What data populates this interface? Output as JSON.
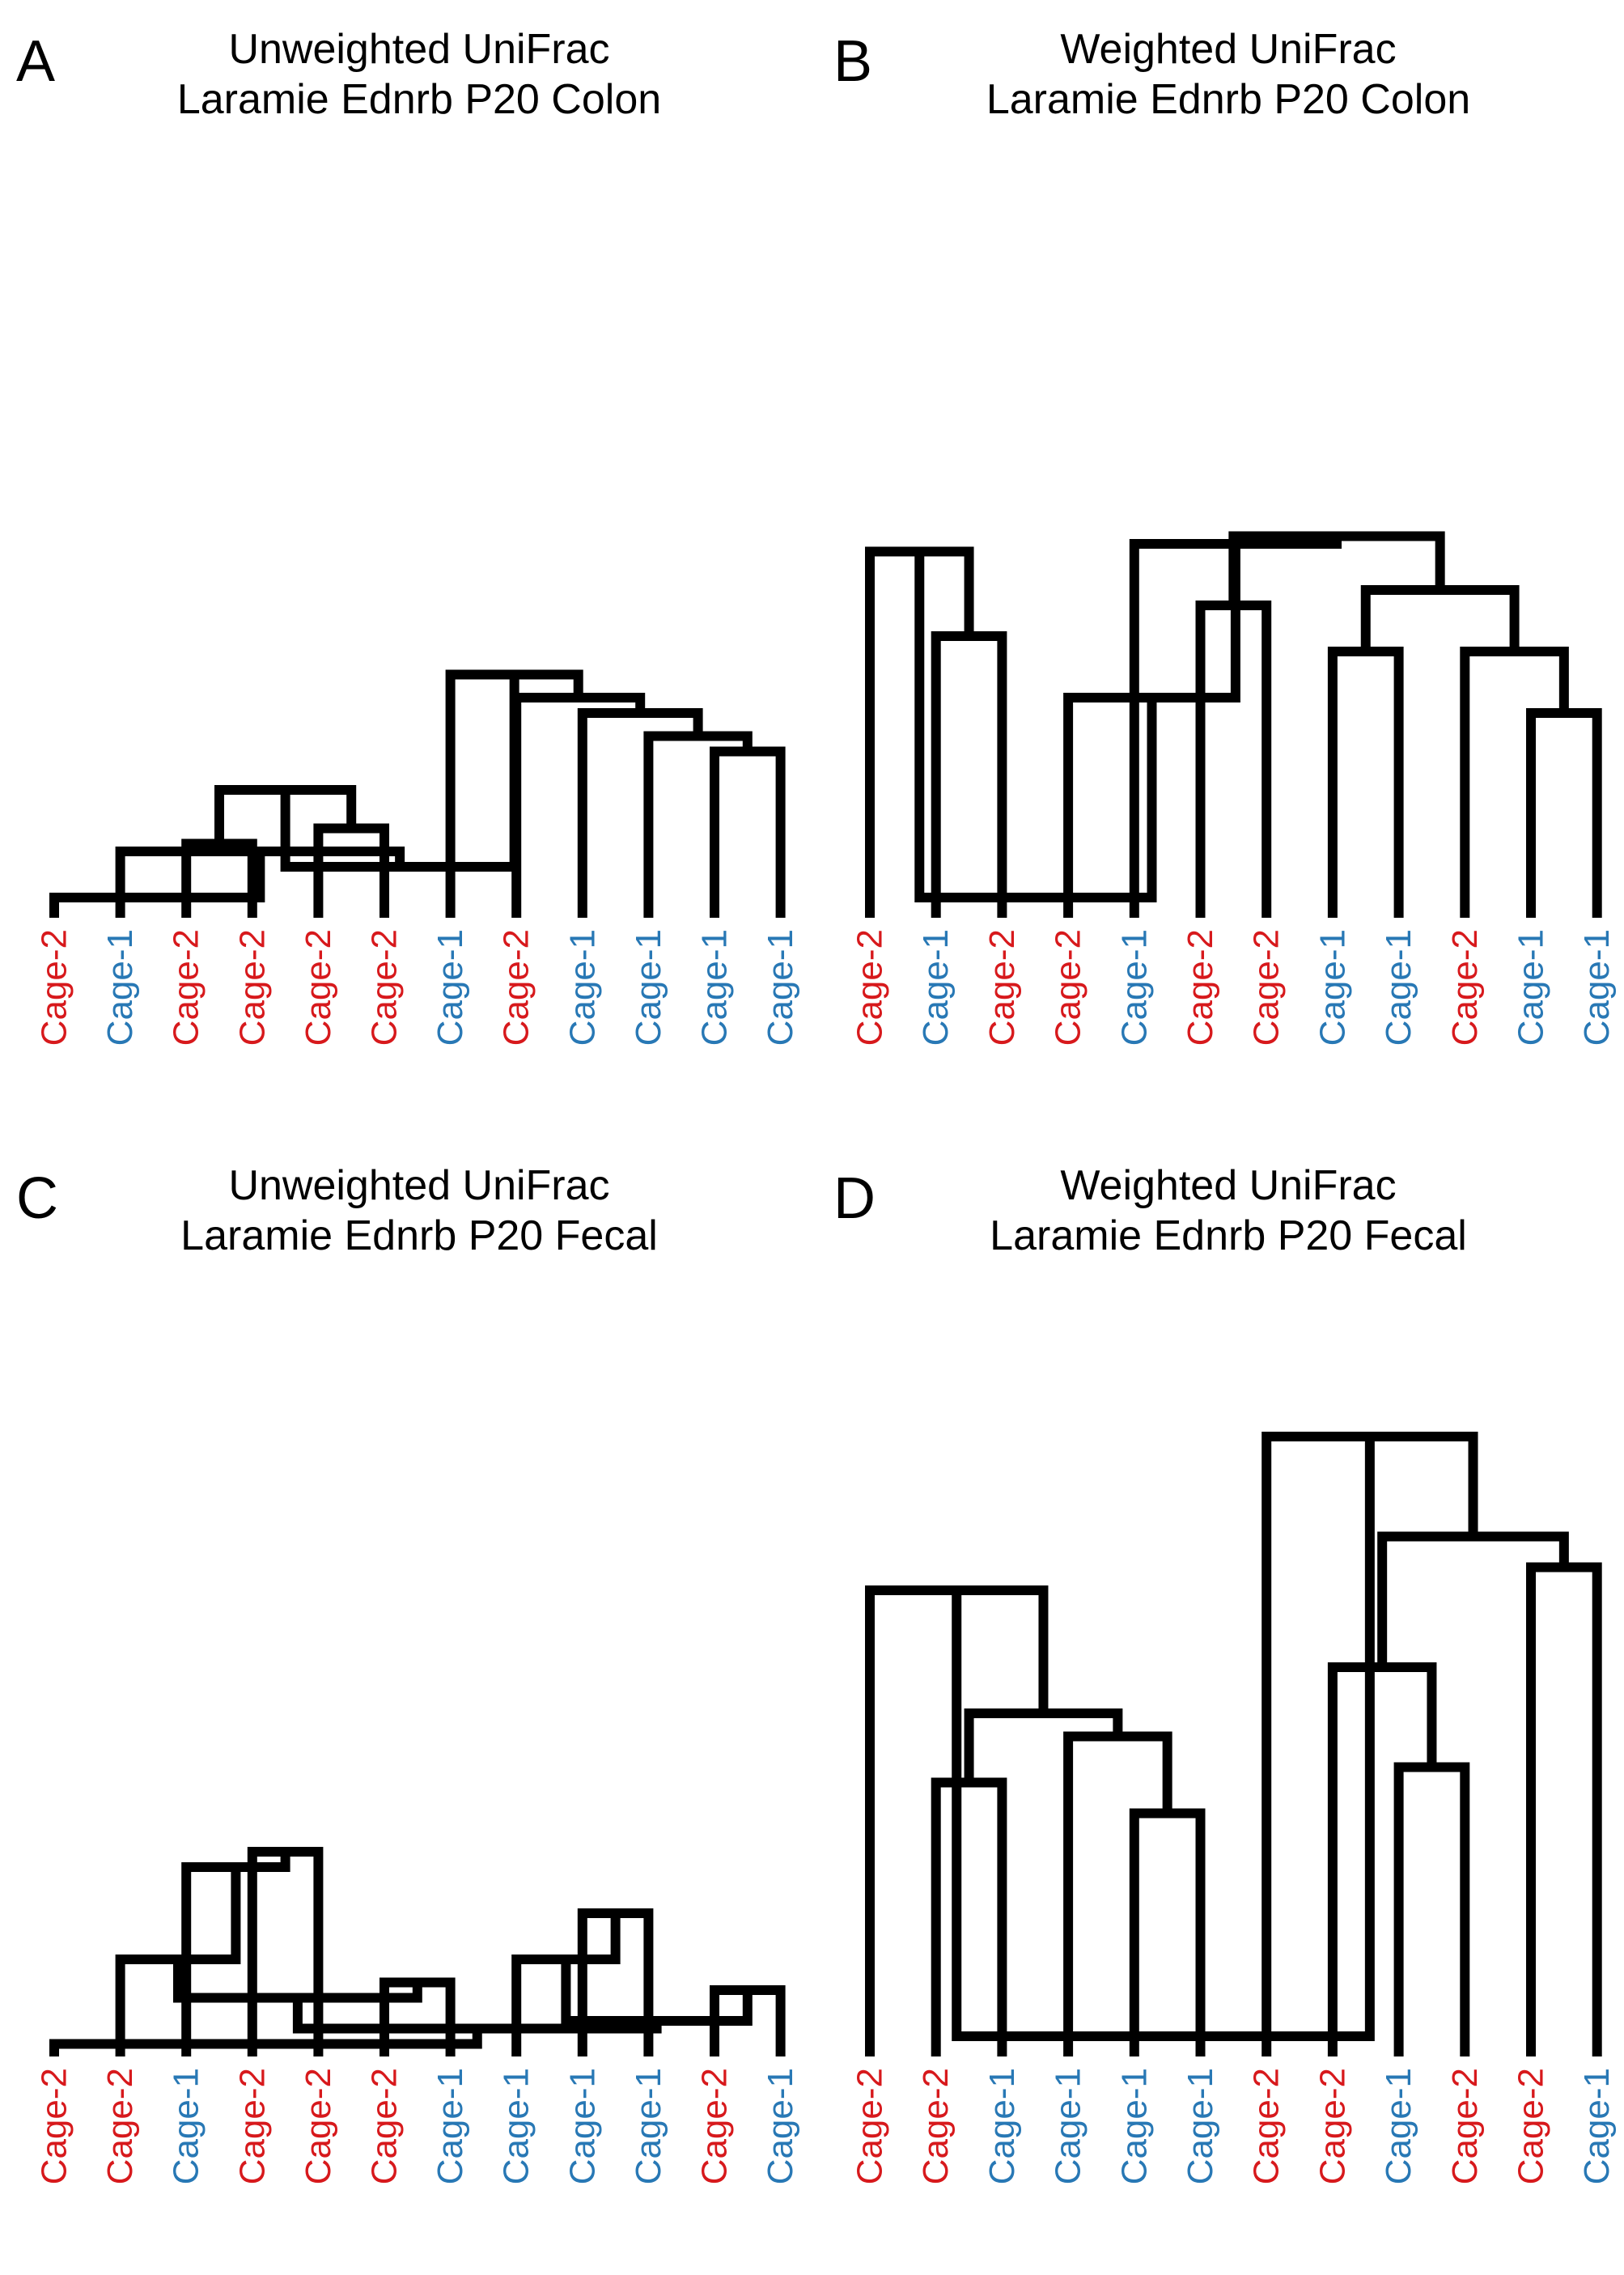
{
  "colors": {
    "Cage-1": "#2878b5",
    "Cage-2": "#d7191c",
    "branch": "#000000"
  },
  "chart_data": [
    {
      "type": "dendrogram",
      "panel": "A",
      "title": [
        "Unweighted UniFrac",
        "Laramie Ednrb P20 Colon"
      ],
      "leaves": [
        "Cage-2",
        "Cage-1",
        "Cage-2",
        "Cage-2",
        "Cage-2",
        "Cage-2",
        "Cage-1",
        "Cage-2",
        "Cage-1",
        "Cage-1",
        "Cage-1",
        "Cage-1"
      ],
      "merges": [
        [
          10,
          11,
          0.21
        ],
        [
          9,
          -1,
          0.23
        ],
        [
          8,
          -2,
          0.26
        ],
        [
          7,
          -3,
          0.28
        ],
        [
          6,
          -4,
          0.31
        ],
        [
          4,
          5,
          0.11
        ],
        [
          2,
          3,
          0.09
        ],
        [
          -7,
          -6,
          0.16
        ],
        [
          -8,
          -5,
          0.06
        ],
        [
          1,
          -9,
          0.08
        ],
        [
          0,
          -10,
          0.02
        ]
      ]
    },
    {
      "type": "dendrogram",
      "panel": "B",
      "title": [
        "Weighted UniFrac",
        "Laramie Ednrb P20 Colon"
      ],
      "leaves": [
        "Cage-2",
        "Cage-1",
        "Cage-2",
        "Cage-2",
        "Cage-1",
        "Cage-2",
        "Cage-2",
        "Cage-1",
        "Cage-1",
        "Cage-2",
        "Cage-1",
        "Cage-1"
      ],
      "merges": [
        [
          1,
          2,
          0.36
        ],
        [
          0,
          -1,
          0.47
        ],
        [
          10,
          11,
          0.26
        ],
        [
          9,
          -3,
          0.34
        ],
        [
          7,
          8,
          0.34
        ],
        [
          -5,
          -4,
          0.42
        ],
        [
          5,
          6,
          0.4
        ],
        [
          -7,
          -6,
          0.49
        ],
        [
          4,
          -8,
          0.48
        ],
        [
          3,
          -9,
          0.28
        ],
        [
          -2,
          -10,
          0.02
        ]
      ]
    },
    {
      "type": "dendrogram",
      "panel": "C",
      "title": [
        "Unweighted UniFrac",
        "Laramie Ednrb P20 Fecal"
      ],
      "leaves": [
        "Cage-2",
        "Cage-2",
        "Cage-1",
        "Cage-2",
        "Cage-2",
        "Cage-2",
        "Cage-1",
        "Cage-1",
        "Cage-1",
        "Cage-1",
        "Cage-2",
        "Cage-1"
      ],
      "merges": [
        [
          3,
          4,
          0.26
        ],
        [
          2,
          -1,
          0.24
        ],
        [
          1,
          -2,
          0.12
        ],
        [
          5,
          6,
          0.09
        ],
        [
          -3,
          -4,
          0.07
        ],
        [
          8,
          9,
          0.18
        ],
        [
          7,
          -6,
          0.12
        ],
        [
          10,
          11,
          0.08
        ],
        [
          -7,
          -8,
          0.04
        ],
        [
          -5,
          -9,
          0.03
        ],
        [
          0,
          -10,
          0.01
        ]
      ]
    },
    {
      "type": "dendrogram",
      "panel": "D",
      "title": [
        "Weighted UniFrac",
        "Laramie Ednrb P20 Fecal"
      ],
      "leaves": [
        "Cage-2",
        "Cage-2",
        "Cage-1",
        "Cage-1",
        "Cage-1",
        "Cage-1",
        "Cage-2",
        "Cage-2",
        "Cage-1",
        "Cage-2",
        "Cage-2",
        "Cage-1"
      ],
      "merges": [
        [
          1,
          2,
          0.35
        ],
        [
          4,
          5,
          0.31
        ],
        [
          3,
          -2,
          0.41
        ],
        [
          -1,
          -3,
          0.44
        ],
        [
          0,
          -4,
          0.6
        ],
        [
          8,
          9,
          0.37
        ],
        [
          7,
          -6,
          0.5
        ],
        [
          10,
          11,
          0.63
        ],
        [
          -7,
          -8,
          0.67
        ],
        [
          6,
          -9,
          0.8
        ],
        [
          -5,
          -10,
          0.02
        ]
      ]
    }
  ]
}
